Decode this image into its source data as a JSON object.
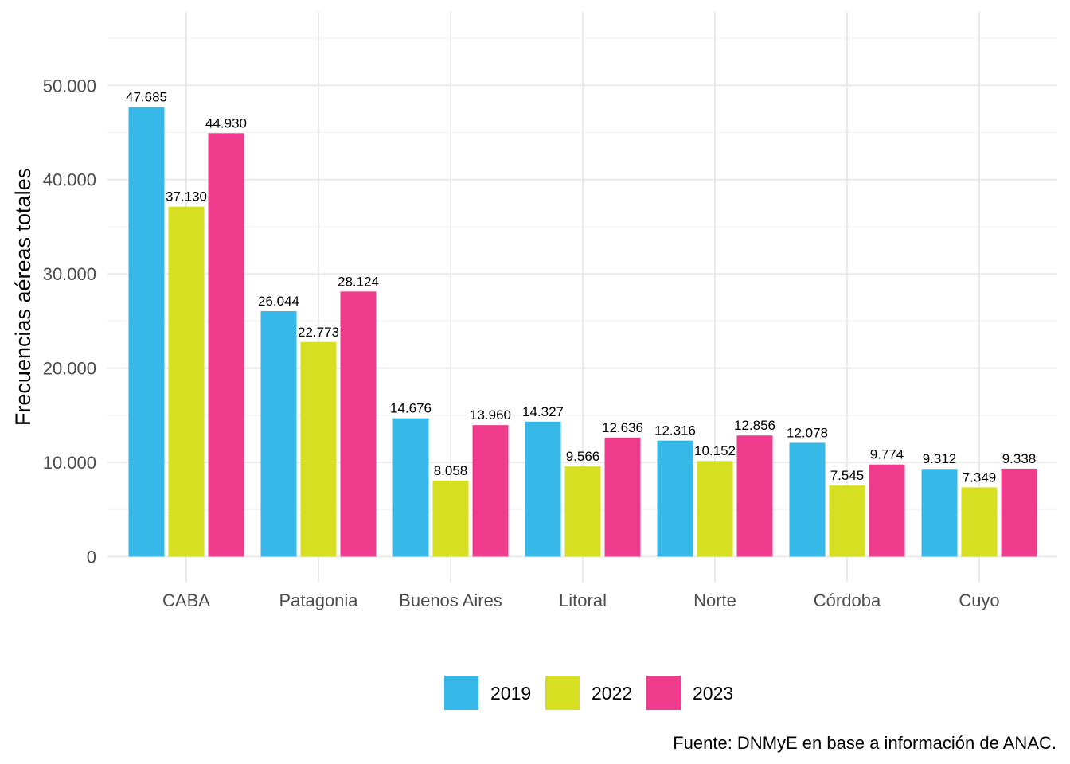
{
  "chart_data": {
    "type": "bar",
    "categories": [
      "CABA",
      "Patagonia",
      "Buenos Aires",
      "Litoral",
      "Norte",
      "Córdoba",
      "Cuyo"
    ],
    "series": [
      {
        "name": "2019",
        "color": "#36b9e9",
        "values": [
          47685,
          26044,
          14676,
          14327,
          12316,
          12078,
          9312
        ],
        "labels": [
          "47.685",
          "26.044",
          "14.676",
          "14.327",
          "12.316",
          "12.078",
          "9.312"
        ]
      },
      {
        "name": "2022",
        "color": "#d6df22",
        "values": [
          37130,
          22773,
          8058,
          9566,
          10152,
          7545,
          7349
        ],
        "labels": [
          "37.130",
          "22.773",
          "8.058",
          "9.566",
          "10.152",
          "7.545",
          "7.349"
        ]
      },
      {
        "name": "2023",
        "color": "#ef3b8c",
        "values": [
          44930,
          28124,
          13960,
          12636,
          12856,
          9774,
          9338
        ],
        "labels": [
          "44.930",
          "28.124",
          "13.960",
          "12.636",
          "12.856",
          "9.774",
          "9.338"
        ]
      }
    ],
    "ylabel": "Frecuencias aéreas totales",
    "xlabel": "",
    "ylim": [
      0,
      55000
    ],
    "yticks": [
      0,
      10000,
      20000,
      30000,
      40000,
      50000
    ],
    "ytick_labels": [
      "0",
      "10.000",
      "20.000",
      "30.000",
      "40.000",
      "50.000"
    ],
    "grid": true,
    "legend_position": "bottom",
    "caption": "Fuente: DNMyE en base a información de ANAC."
  }
}
